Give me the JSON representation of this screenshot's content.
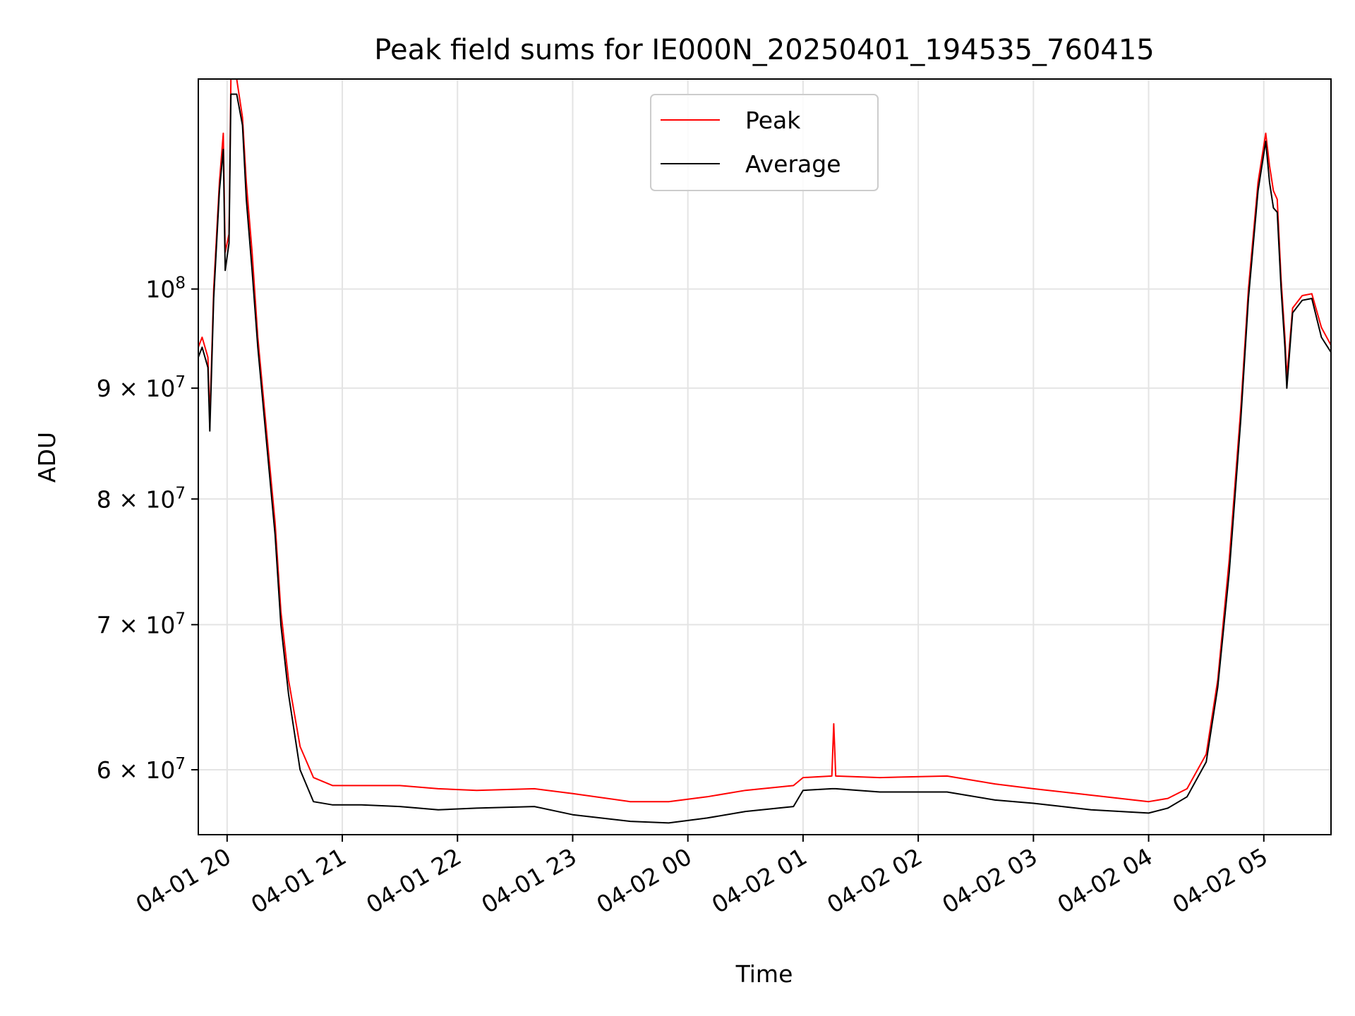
{
  "chart_data": {
    "type": "line",
    "title": "Peak field sums for IE000N_20250401_194535_760415",
    "xlabel": "Time",
    "ylabel": "ADU",
    "y_scale": "log",
    "ylim": [
      56000000,
      125000000
    ],
    "xlim": [
      "2025-04-01 19:45",
      "2025-04-02 05:35"
    ],
    "grid": true,
    "legend": "upper center",
    "x_ticks": [
      {
        "label": "04-01 20",
        "t": "2025-04-01 20:00"
      },
      {
        "label": "04-01 21",
        "t": "2025-04-01 21:00"
      },
      {
        "label": "04-01 22",
        "t": "2025-04-01 22:00"
      },
      {
        "label": "04-01 23",
        "t": "2025-04-01 23:00"
      },
      {
        "label": "04-02 00",
        "t": "2025-04-02 00:00"
      },
      {
        "label": "04-02 01",
        "t": "2025-04-02 01:00"
      },
      {
        "label": "04-02 02",
        "t": "2025-04-02 02:00"
      },
      {
        "label": "04-02 03",
        "t": "2025-04-02 03:00"
      },
      {
        "label": "04-02 04",
        "t": "2025-04-02 04:00"
      },
      {
        "label": "04-02 05",
        "t": "2025-04-02 05:00"
      }
    ],
    "y_ticks": [
      {
        "value": 60000000,
        "mant": "6",
        "exp": "7"
      },
      {
        "value": 70000000,
        "mant": "7",
        "exp": "7"
      },
      {
        "value": 80000000,
        "mant": "8",
        "exp": "7"
      },
      {
        "value": 90000000,
        "mant": "9",
        "exp": "7"
      },
      {
        "value": 100000000,
        "mant": "",
        "exp": "8"
      }
    ],
    "series": [
      {
        "name": "Peak",
        "color": "#ff0000",
        "points": [
          [
            "2025-04-01 19:45",
            94000000
          ],
          [
            "2025-04-01 19:47",
            95000000
          ],
          [
            "2025-04-01 19:50",
            93000000
          ],
          [
            "2025-04-01 19:51",
            87000000
          ],
          [
            "2025-04-01 19:53",
            100000000
          ],
          [
            "2025-04-01 19:56",
            112000000
          ],
          [
            "2025-04-01 19:58",
            118000000
          ],
          [
            "2025-04-01 19:59",
            104000000
          ],
          [
            "2025-04-01 20:01",
            106000000
          ],
          [
            "2025-04-01 20:02",
            125000000
          ],
          [
            "2025-04-01 20:05",
            125000000
          ],
          [
            "2025-04-01 20:08",
            120000000
          ],
          [
            "2025-04-01 20:10",
            112000000
          ],
          [
            "2025-04-01 20:13",
            104000000
          ],
          [
            "2025-04-01 20:16",
            95000000
          ],
          [
            "2025-04-01 20:20",
            87000000
          ],
          [
            "2025-04-01 20:25",
            78000000
          ],
          [
            "2025-04-01 20:28",
            71000000
          ],
          [
            "2025-04-01 20:32",
            66000000
          ],
          [
            "2025-04-01 20:38",
            61500000
          ],
          [
            "2025-04-01 20:45",
            59500000
          ],
          [
            "2025-04-01 20:55",
            59000000
          ],
          [
            "2025-04-01 21:10",
            59000000
          ],
          [
            "2025-04-01 21:30",
            59000000
          ],
          [
            "2025-04-01 21:50",
            58800000
          ],
          [
            "2025-04-01 22:10",
            58700000
          ],
          [
            "2025-04-01 22:40",
            58800000
          ],
          [
            "2025-04-01 23:00",
            58500000
          ],
          [
            "2025-04-01 23:30",
            58000000
          ],
          [
            "2025-04-01 23:50",
            58000000
          ],
          [
            "2025-04-02 00:10",
            58300000
          ],
          [
            "2025-04-02 00:30",
            58700000
          ],
          [
            "2025-04-02 00:55",
            59000000
          ],
          [
            "2025-04-02 01:00",
            59500000
          ],
          [
            "2025-04-02 01:15",
            59600000
          ],
          [
            "2025-04-02 01:16",
            63000000
          ],
          [
            "2025-04-02 01:17",
            59600000
          ],
          [
            "2025-04-02 01:40",
            59500000
          ],
          [
            "2025-04-02 02:15",
            59600000
          ],
          [
            "2025-04-02 02:40",
            59100000
          ],
          [
            "2025-04-02 03:00",
            58800000
          ],
          [
            "2025-04-02 03:30",
            58400000
          ],
          [
            "2025-04-02 04:00",
            58000000
          ],
          [
            "2025-04-02 04:10",
            58200000
          ],
          [
            "2025-04-02 04:20",
            58800000
          ],
          [
            "2025-04-02 04:30",
            61000000
          ],
          [
            "2025-04-02 04:36",
            66000000
          ],
          [
            "2025-04-02 04:42",
            75000000
          ],
          [
            "2025-04-02 04:48",
            88000000
          ],
          [
            "2025-04-02 04:52",
            100000000
          ],
          [
            "2025-04-02 04:57",
            112000000
          ],
          [
            "2025-04-02 05:01",
            118000000
          ],
          [
            "2025-04-02 05:03",
            114000000
          ],
          [
            "2025-04-02 05:05",
            111000000
          ],
          [
            "2025-04-02 05:07",
            110000000
          ],
          [
            "2025-04-02 05:09",
            101000000
          ],
          [
            "2025-04-02 05:11",
            95000000
          ],
          [
            "2025-04-02 05:12",
            91000000
          ],
          [
            "2025-04-02 05:15",
            98000000
          ],
          [
            "2025-04-02 05:20",
            99300000
          ],
          [
            "2025-04-02 05:25",
            99500000
          ],
          [
            "2025-04-02 05:30",
            96000000
          ],
          [
            "2025-04-02 05:35",
            94200000
          ]
        ]
      },
      {
        "name": "Average",
        "color": "#000000",
        "points": [
          [
            "2025-04-01 19:45",
            93000000
          ],
          [
            "2025-04-01 19:47",
            94000000
          ],
          [
            "2025-04-01 19:50",
            92000000
          ],
          [
            "2025-04-01 19:51",
            86000000
          ],
          [
            "2025-04-01 19:53",
            99000000
          ],
          [
            "2025-04-01 19:56",
            111000000
          ],
          [
            "2025-04-01 19:58",
            116000000
          ],
          [
            "2025-04-01 19:59",
            102000000
          ],
          [
            "2025-04-01 20:01",
            105000000
          ],
          [
            "2025-04-01 20:02",
            123000000
          ],
          [
            "2025-04-01 20:05",
            123000000
          ],
          [
            "2025-04-01 20:08",
            119000000
          ],
          [
            "2025-04-01 20:10",
            110000000
          ],
          [
            "2025-04-01 20:13",
            102000000
          ],
          [
            "2025-04-01 20:16",
            94000000
          ],
          [
            "2025-04-01 20:20",
            86000000
          ],
          [
            "2025-04-01 20:25",
            77000000
          ],
          [
            "2025-04-01 20:28",
            70000000
          ],
          [
            "2025-04-01 20:32",
            65000000
          ],
          [
            "2025-04-01 20:38",
            60000000
          ],
          [
            "2025-04-01 20:45",
            58000000
          ],
          [
            "2025-04-01 20:55",
            57800000
          ],
          [
            "2025-04-01 21:10",
            57800000
          ],
          [
            "2025-04-01 21:30",
            57700000
          ],
          [
            "2025-04-01 21:50",
            57500000
          ],
          [
            "2025-04-01 22:10",
            57600000
          ],
          [
            "2025-04-01 22:40",
            57700000
          ],
          [
            "2025-04-01 23:00",
            57200000
          ],
          [
            "2025-04-01 23:30",
            56800000
          ],
          [
            "2025-04-01 23:50",
            56700000
          ],
          [
            "2025-04-02 00:10",
            57000000
          ],
          [
            "2025-04-02 00:30",
            57400000
          ],
          [
            "2025-04-02 00:55",
            57700000
          ],
          [
            "2025-04-02 01:00",
            58700000
          ],
          [
            "2025-04-02 01:15",
            58800000
          ],
          [
            "2025-04-02 01:16",
            58800000
          ],
          [
            "2025-04-02 01:17",
            58800000
          ],
          [
            "2025-04-02 01:40",
            58600000
          ],
          [
            "2025-04-02 02:15",
            58600000
          ],
          [
            "2025-04-02 02:40",
            58100000
          ],
          [
            "2025-04-02 03:00",
            57900000
          ],
          [
            "2025-04-02 03:30",
            57500000
          ],
          [
            "2025-04-02 04:00",
            57300000
          ],
          [
            "2025-04-02 04:10",
            57600000
          ],
          [
            "2025-04-02 04:20",
            58300000
          ],
          [
            "2025-04-02 04:30",
            60500000
          ],
          [
            "2025-04-02 04:36",
            65500000
          ],
          [
            "2025-04-02 04:42",
            74000000
          ],
          [
            "2025-04-02 04:48",
            87000000
          ],
          [
            "2025-04-02 04:52",
            99000000
          ],
          [
            "2025-04-02 04:57",
            111000000
          ],
          [
            "2025-04-02 05:01",
            117000000
          ],
          [
            "2025-04-02 05:03",
            112000000
          ],
          [
            "2025-04-02 05:05",
            109000000
          ],
          [
            "2025-04-02 05:07",
            108500000
          ],
          [
            "2025-04-02 05:09",
            100000000
          ],
          [
            "2025-04-02 05:11",
            94000000
          ],
          [
            "2025-04-02 05:12",
            90000000
          ],
          [
            "2025-04-02 05:15",
            97500000
          ],
          [
            "2025-04-02 05:20",
            98800000
          ],
          [
            "2025-04-02 05:25",
            99000000
          ],
          [
            "2025-04-02 05:30",
            95000000
          ],
          [
            "2025-04-02 05:35",
            93500000
          ]
        ]
      }
    ]
  }
}
